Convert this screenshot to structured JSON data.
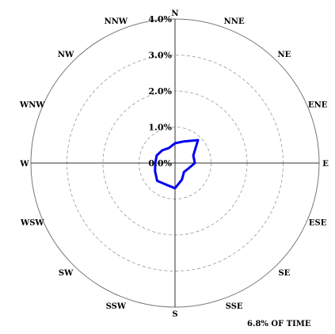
{
  "chart_data": {
    "type": "polar-line",
    "title": "",
    "directions": [
      "N",
      "NNE",
      "NE",
      "ENE",
      "E",
      "ESE",
      "SE",
      "SSE",
      "S",
      "SSW",
      "SW",
      "WSW",
      "W",
      "WNW",
      "NW",
      "NNW"
    ],
    "radial_ticks": [
      "0.0%",
      "1.0%",
      "2.0%",
      "3.0%",
      "4.0%"
    ],
    "radial_max": 4.0,
    "grid": "dashed circles",
    "series": [
      {
        "color": "#0000ee",
        "values_percent": [
          0.55,
          0.65,
          0.9,
          0.55,
          0.55,
          0.4,
          0.35,
          0.5,
          0.7,
          0.65,
          0.7,
          0.6,
          0.55,
          0.55,
          0.5,
          0.45
        ]
      }
    ],
    "footnote": "6.8% OF TIME"
  }
}
